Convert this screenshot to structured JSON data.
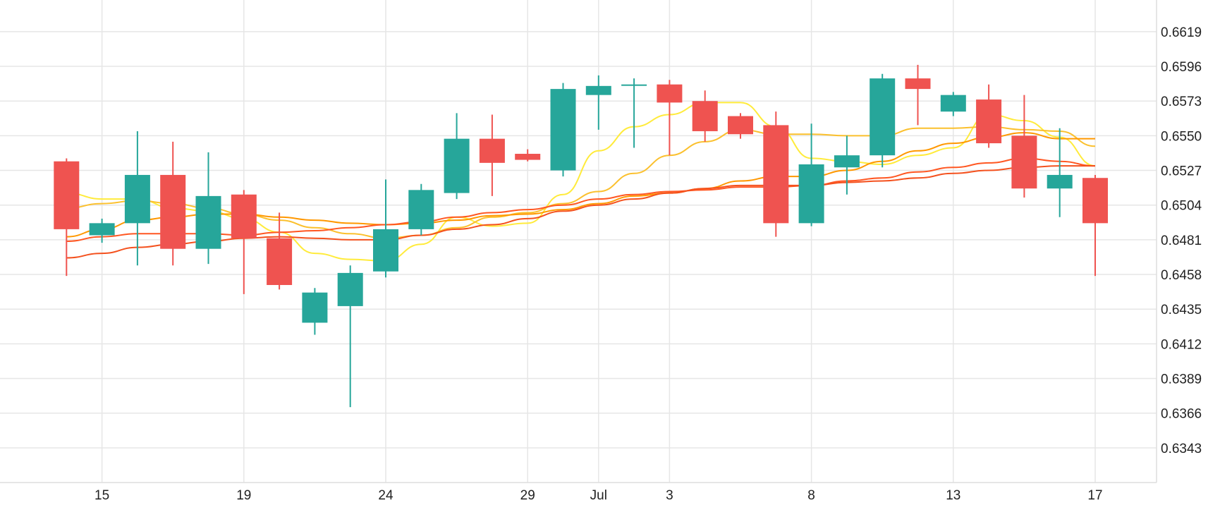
{
  "chart_data": {
    "type": "candlestick",
    "title": "",
    "xlabel": "",
    "ylabel": "",
    "ylim": [
      0.632,
      0.664
    ],
    "yticks": [
      "0.6343",
      "0.6366",
      "0.6389",
      "0.6412",
      "0.6435",
      "0.6458",
      "0.6481",
      "0.6504",
      "0.6527",
      "0.6550",
      "0.6573",
      "0.6596",
      "0.6619"
    ],
    "xticks": [
      {
        "day": 2,
        "label": "15"
      },
      {
        "day": 6,
        "label": "19"
      },
      {
        "day": 10,
        "label": "24"
      },
      {
        "day": 14,
        "label": "29"
      },
      {
        "day": 16,
        "label": "Jul"
      },
      {
        "day": 18,
        "label": "3"
      },
      {
        "day": 22,
        "label": "8"
      },
      {
        "day": 26,
        "label": "13"
      },
      {
        "day": 30,
        "label": "17"
      }
    ],
    "grid": true,
    "colors": {
      "up": "#26a69a",
      "down": "#ef5350",
      "grid": "#e6e6e6",
      "axis": "#dddddd"
    },
    "candles": [
      {
        "day": 1,
        "open": 0.6533,
        "high": 0.6535,
        "low": 0.6457,
        "close": 0.6488
      },
      {
        "day": 2,
        "open": 0.6484,
        "high": 0.6495,
        "low": 0.6479,
        "close": 0.6492
      },
      {
        "day": 3,
        "open": 0.6492,
        "high": 0.6553,
        "low": 0.6464,
        "close": 0.6524
      },
      {
        "day": 4,
        "open": 0.6524,
        "high": 0.6546,
        "low": 0.6464,
        "close": 0.6475
      },
      {
        "day": 5,
        "open": 0.6475,
        "high": 0.6539,
        "low": 0.6465,
        "close": 0.651
      },
      {
        "day": 6,
        "open": 0.6511,
        "high": 0.6514,
        "low": 0.6445,
        "close": 0.6482
      },
      {
        "day": 7,
        "open": 0.6482,
        "high": 0.6499,
        "low": 0.6448,
        "close": 0.6451
      },
      {
        "day": 8,
        "open": 0.6426,
        "high": 0.6449,
        "low": 0.6418,
        "close": 0.6446
      },
      {
        "day": 9,
        "open": 0.6437,
        "high": 0.6464,
        "low": 0.637,
        "close": 0.6459
      },
      {
        "day": 10,
        "open": 0.646,
        "high": 0.6521,
        "low": 0.6456,
        "close": 0.6488
      },
      {
        "day": 11,
        "open": 0.6488,
        "high": 0.6518,
        "low": 0.6484,
        "close": 0.6514
      },
      {
        "day": 12,
        "open": 0.6512,
        "high": 0.6565,
        "low": 0.6508,
        "close": 0.6548
      },
      {
        "day": 13,
        "open": 0.6548,
        "high": 0.6564,
        "low": 0.651,
        "close": 0.6532
      },
      {
        "day": 14,
        "open": 0.6538,
        "high": 0.6541,
        "low": 0.6533,
        "close": 0.6534
      },
      {
        "day": 15,
        "open": 0.6527,
        "high": 0.6585,
        "low": 0.6523,
        "close": 0.6581
      },
      {
        "day": 16,
        "open": 0.6577,
        "high": 0.659,
        "low": 0.6554,
        "close": 0.6583
      },
      {
        "day": 17,
        "open": 0.6584,
        "high": 0.6588,
        "low": 0.6542,
        "close": 0.6584
      },
      {
        "day": 18,
        "open": 0.6584,
        "high": 0.6587,
        "low": 0.6537,
        "close": 0.6572
      },
      {
        "day": 19,
        "open": 0.6573,
        "high": 0.658,
        "low": 0.6546,
        "close": 0.6553
      },
      {
        "day": 20,
        "open": 0.6563,
        "high": 0.6565,
        "low": 0.6548,
        "close": 0.6551
      },
      {
        "day": 21,
        "open": 0.6557,
        "high": 0.6566,
        "low": 0.6483,
        "close": 0.6492
      },
      {
        "day": 22,
        "open": 0.6492,
        "high": 0.6558,
        "low": 0.649,
        "close": 0.6531
      },
      {
        "day": 23,
        "open": 0.6529,
        "high": 0.655,
        "low": 0.6511,
        "close": 0.6537
      },
      {
        "day": 24,
        "open": 0.6537,
        "high": 0.6591,
        "low": 0.6529,
        "close": 0.6588
      },
      {
        "day": 25,
        "open": 0.6588,
        "high": 0.6597,
        "low": 0.6557,
        "close": 0.6581
      },
      {
        "day": 26,
        "open": 0.6566,
        "high": 0.6579,
        "low": 0.6563,
        "close": 0.6577
      },
      {
        "day": 27,
        "open": 0.6574,
        "high": 0.6584,
        "low": 0.6542,
        "close": 0.6545
      },
      {
        "day": 28,
        "open": 0.655,
        "high": 0.6577,
        "low": 0.6509,
        "close": 0.6515
      },
      {
        "day": 29,
        "open": 0.6515,
        "high": 0.6555,
        "low": 0.6496,
        "close": 0.6524
      },
      {
        "day": 30,
        "open": 0.6522,
        "high": 0.6524,
        "low": 0.6457,
        "close": 0.6492
      }
    ],
    "series": [
      {
        "color": "#ffeb3b",
        "values": [
          0.6512,
          0.6508,
          0.6508,
          0.6502,
          0.65,
          0.6495,
          0.6486,
          0.6472,
          0.6468,
          0.6467,
          0.6478,
          0.6496,
          0.649,
          0.6492,
          0.6511,
          0.654,
          0.6556,
          0.6564,
          0.6572,
          0.6572,
          0.6556,
          0.6535,
          0.6533,
          0.6531,
          0.6537,
          0.6542,
          0.6564,
          0.656,
          0.6549,
          0.653
        ]
      },
      {
        "color": "#fbc02d",
        "values": [
          0.6502,
          0.6505,
          0.6507,
          0.6505,
          0.6502,
          0.6498,
          0.6494,
          0.6489,
          0.6485,
          0.6482,
          0.6484,
          0.6489,
          0.6496,
          0.6499,
          0.6505,
          0.6513,
          0.6525,
          0.6537,
          0.6546,
          0.6554,
          0.6551,
          0.6551,
          0.655,
          0.655,
          0.6555,
          0.6555,
          0.6556,
          0.6554,
          0.6553,
          0.6543
        ]
      },
      {
        "color": "#ff9800",
        "values": [
          0.6483,
          0.6488,
          0.6494,
          0.6496,
          0.6498,
          0.6498,
          0.6496,
          0.6494,
          0.6492,
          0.6491,
          0.6492,
          0.6494,
          0.6497,
          0.6498,
          0.6501,
          0.6505,
          0.651,
          0.6512,
          0.6515,
          0.652,
          0.6523,
          0.6523,
          0.6527,
          0.6533,
          0.654,
          0.6545,
          0.6549,
          0.6552,
          0.6548,
          0.6548
        ]
      },
      {
        "color": "#ff5722",
        "values": [
          0.648,
          0.6483,
          0.6485,
          0.6485,
          0.6485,
          0.6484,
          0.6486,
          0.6487,
          0.6489,
          0.6491,
          0.6493,
          0.6496,
          0.6499,
          0.6501,
          0.6504,
          0.6508,
          0.6511,
          0.6513,
          0.6514,
          0.6516,
          0.6516,
          0.6517,
          0.652,
          0.6522,
          0.6526,
          0.6529,
          0.6532,
          0.6535,
          0.6533,
          0.653
        ]
      },
      {
        "color": "#f4511e",
        "values": [
          0.6469,
          0.6472,
          0.6476,
          0.6478,
          0.648,
          0.6482,
          0.6483,
          0.6482,
          0.6481,
          0.6481,
          0.6484,
          0.6488,
          0.6491,
          0.6495,
          0.65,
          0.6504,
          0.6508,
          0.6512,
          0.6515,
          0.6517,
          0.6517,
          0.6517,
          0.6519,
          0.652,
          0.6522,
          0.6525,
          0.6527,
          0.6529,
          0.653,
          0.653
        ]
      }
    ]
  }
}
